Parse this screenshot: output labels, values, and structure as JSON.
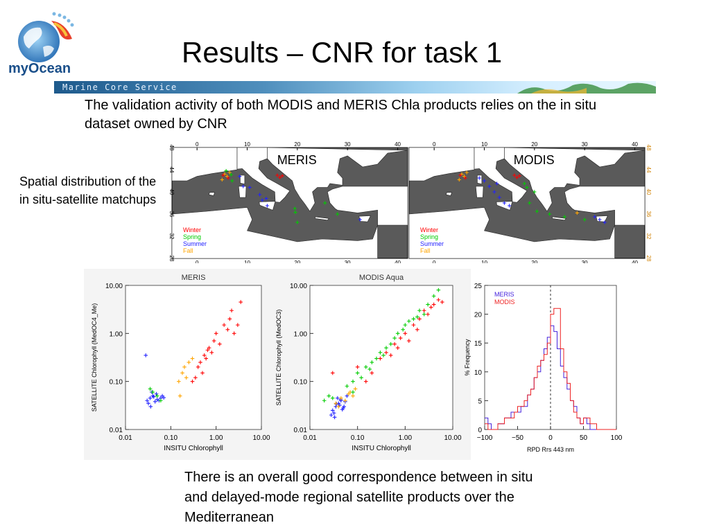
{
  "logo": {
    "text": "myOcean"
  },
  "banner": {
    "text": "Marine Core Service"
  },
  "title": "Results – CNR for task 1",
  "intro": "The validation activity of both MODIS and MERIS Chla products relies on the in situ dataset owned by CNR",
  "side_label": "Spatial distribution of the in situ-satellite matchups",
  "conclusion": "There is an overall good correspondence between in situ and delayed-mode regional satellite products over the Mediterranean",
  "colors": {
    "winter": "#ff0000",
    "spring": "#00cc00",
    "summer": "#2222ff",
    "fall": "#ffa500",
    "land": "#ffffff",
    "sea": "#5a5a5a"
  },
  "maps": [
    {
      "title": "MERIS",
      "legend": [
        "Winter",
        "Spring",
        "Summer",
        "Fall"
      ],
      "lon_ticks": [
        "0",
        "10",
        "20",
        "30",
        "40"
      ],
      "lat_ticks": [
        "48",
        "44",
        "40",
        "36",
        "32",
        "28"
      ],
      "points": [
        {
          "lon": 5.5,
          "lat": 43.2,
          "s": "fall"
        },
        {
          "lon": 6.0,
          "lat": 42.8,
          "s": "fall"
        },
        {
          "lon": 5.0,
          "lat": 42.2,
          "s": "fall"
        },
        {
          "lon": 6.5,
          "lat": 43.5,
          "s": "fall"
        },
        {
          "lon": 5.2,
          "lat": 43.0,
          "s": "winter"
        },
        {
          "lon": 6.2,
          "lat": 42.5,
          "s": "winter"
        },
        {
          "lon": 5.8,
          "lat": 43.8,
          "s": "spring"
        },
        {
          "lon": 7.0,
          "lat": 42.0,
          "s": "spring"
        },
        {
          "lon": 6.8,
          "lat": 43.1,
          "s": "spring"
        },
        {
          "lon": 8.5,
          "lat": 42.8,
          "s": "summer"
        },
        {
          "lon": 9.2,
          "lat": 41.0,
          "s": "summer"
        },
        {
          "lon": 10.5,
          "lat": 40.8,
          "s": "summer"
        },
        {
          "lon": 13.0,
          "lat": 38.5,
          "s": "summer"
        },
        {
          "lon": 14.0,
          "lat": 37.5,
          "s": "summer"
        },
        {
          "lon": 12.5,
          "lat": 39.5,
          "s": "summer"
        },
        {
          "lon": 13.8,
          "lat": 38.8,
          "s": "summer"
        },
        {
          "lon": 16.0,
          "lat": 43.0,
          "s": "winter"
        },
        {
          "lon": 16.5,
          "lat": 42.6,
          "s": "winter"
        },
        {
          "lon": 17.0,
          "lat": 42.9,
          "s": "winter"
        },
        {
          "lon": 19.5,
          "lat": 37.0,
          "s": "spring"
        },
        {
          "lon": 19.6,
          "lat": 36.3,
          "s": "spring"
        },
        {
          "lon": 20.0,
          "lat": 34.5,
          "s": "spring"
        },
        {
          "lon": 25.5,
          "lat": 38.0,
          "s": "spring"
        },
        {
          "lon": 28.0,
          "lat": 36.0,
          "s": "spring"
        },
        {
          "lon": 32.5,
          "lat": 35.0,
          "s": "summer"
        }
      ]
    },
    {
      "title": "MODIS",
      "legend": [
        "Winter",
        "Spring",
        "Summer",
        "Fall"
      ],
      "lon_ticks": [
        "0",
        "10",
        "20",
        "30",
        "40"
      ],
      "lat_ticks": [
        "48",
        "44",
        "40",
        "36",
        "32",
        "28"
      ],
      "points": [
        {
          "lon": 5.5,
          "lat": 43.2,
          "s": "fall"
        },
        {
          "lon": 6.0,
          "lat": 42.8,
          "s": "fall"
        },
        {
          "lon": 5.0,
          "lat": 42.2,
          "s": "fall"
        },
        {
          "lon": 6.5,
          "lat": 43.5,
          "s": "fall"
        },
        {
          "lon": 5.2,
          "lat": 43.0,
          "s": "winter"
        },
        {
          "lon": 6.2,
          "lat": 42.5,
          "s": "winter"
        },
        {
          "lon": 9.0,
          "lat": 42.5,
          "s": "summer"
        },
        {
          "lon": 10.0,
          "lat": 42.0,
          "s": "summer"
        },
        {
          "lon": 11.0,
          "lat": 41.0,
          "s": "summer"
        },
        {
          "lon": 12.0,
          "lat": 40.0,
          "s": "summer"
        },
        {
          "lon": 13.0,
          "lat": 39.0,
          "s": "summer"
        },
        {
          "lon": 14.0,
          "lat": 38.0,
          "s": "summer"
        },
        {
          "lon": 15.0,
          "lat": 37.5,
          "s": "summer"
        },
        {
          "lon": 12.5,
          "lat": 41.5,
          "s": "summer"
        },
        {
          "lon": 16.0,
          "lat": 43.0,
          "s": "winter"
        },
        {
          "lon": 16.5,
          "lat": 42.6,
          "s": "winter"
        },
        {
          "lon": 17.0,
          "lat": 42.9,
          "s": "winter"
        },
        {
          "lon": 18.0,
          "lat": 41.5,
          "s": "spring"
        },
        {
          "lon": 18.5,
          "lat": 40.8,
          "s": "spring"
        },
        {
          "lon": 20.0,
          "lat": 40.0,
          "s": "spring"
        },
        {
          "lon": 19.0,
          "lat": 38.0,
          "s": "spring"
        },
        {
          "lon": 20.5,
          "lat": 36.5,
          "s": "spring"
        },
        {
          "lon": 23.0,
          "lat": 36.0,
          "s": "spring"
        },
        {
          "lon": 26.0,
          "lat": 35.5,
          "s": "spring"
        },
        {
          "lon": 28.5,
          "lat": 36.2,
          "s": "fall"
        },
        {
          "lon": 30.0,
          "lat": 35.0,
          "s": "spring"
        },
        {
          "lon": 32.0,
          "lat": 35.5,
          "s": "summer"
        },
        {
          "lon": 33.0,
          "lat": 35.0,
          "s": "summer"
        },
        {
          "lon": 34.0,
          "lat": 34.5,
          "s": "summer"
        }
      ]
    }
  ],
  "chart_data": [
    {
      "type": "scatter",
      "title": "MERIS",
      "xlabel": "INSITU Chlorophyll",
      "ylabel": "SATELLITE Chlorophyll (MedOC4_Me)",
      "x_scale": "log",
      "y_scale": "log",
      "xlim": [
        0.01,
        10.0
      ],
      "ylim": [
        0.01,
        10.0
      ],
      "x_ticks": [
        "0.01",
        "0.10",
        "1.00",
        "10.00"
      ],
      "y_ticks": [
        "0.01",
        "0.10",
        "1.00",
        "10.00"
      ],
      "series": [
        {
          "season": "summer",
          "x": [
            0.028,
            0.03,
            0.035,
            0.04,
            0.045,
            0.05,
            0.032,
            0.038,
            0.042,
            0.055,
            0.06,
            0.065,
            0.07,
            0.036,
            0.048
          ],
          "y": [
            0.35,
            0.04,
            0.045,
            0.05,
            0.038,
            0.042,
            0.035,
            0.06,
            0.048,
            0.04,
            0.045,
            0.05,
            0.046,
            0.03,
            0.055
          ]
        },
        {
          "season": "spring",
          "x": [
            0.04,
            0.05,
            0.035,
            0.06
          ],
          "y": [
            0.06,
            0.05,
            0.07,
            0.04
          ]
        },
        {
          "season": "fall",
          "x": [
            0.15,
            0.18,
            0.2,
            0.22,
            0.25,
            0.3,
            0.16
          ],
          "y": [
            0.1,
            0.15,
            0.2,
            0.12,
            0.25,
            0.3,
            0.05
          ]
        },
        {
          "season": "winter",
          "x": [
            0.3,
            0.4,
            0.5,
            0.6,
            0.7,
            0.8,
            0.9,
            1.0,
            1.2,
            1.5,
            2.0,
            2.5,
            3.0,
            3.5,
            0.35,
            0.45,
            0.55,
            1.8,
            2.2,
            0.65
          ],
          "y": [
            0.1,
            0.2,
            0.15,
            0.3,
            0.5,
            0.4,
            0.7,
            1.0,
            0.6,
            1.5,
            2.0,
            1.0,
            1.5,
            4.5,
            0.12,
            0.25,
            0.35,
            1.2,
            3.0,
            0.45
          ]
        }
      ]
    },
    {
      "type": "scatter",
      "title": "MODIS Aqua",
      "xlabel": "INSITU Chlorophyll",
      "ylabel": "SATELLITE Chlorophyll (MedOC3)",
      "x_scale": "log",
      "y_scale": "log",
      "xlim": [
        0.01,
        10.0
      ],
      "ylim": [
        0.01,
        10.0
      ],
      "x_ticks": [
        "0.01",
        "0.10",
        "1.00",
        "10.00"
      ],
      "y_ticks": [
        "0.01",
        "0.10",
        "1.00",
        "10.00"
      ],
      "series": [
        {
          "season": "summer",
          "x": [
            0.028,
            0.03,
            0.035,
            0.04,
            0.045,
            0.05,
            0.032,
            0.038,
            0.042,
            0.055,
            0.06,
            0.033,
            0.048,
            0.036,
            0.044,
            0.052
          ],
          "y": [
            0.02,
            0.025,
            0.03,
            0.035,
            0.04,
            0.028,
            0.022,
            0.045,
            0.032,
            0.038,
            0.05,
            0.018,
            0.026,
            0.034,
            0.042,
            0.03
          ]
        },
        {
          "season": "fall",
          "x": [
            0.035,
            0.045,
            0.055,
            0.065,
            0.07,
            0.08,
            0.09,
            0.04
          ],
          "y": [
            0.035,
            0.045,
            0.04,
            0.055,
            0.06,
            0.05,
            0.07,
            0.03
          ]
        },
        {
          "season": "spring",
          "x": [
            0.02,
            0.025,
            0.03,
            0.06,
            0.08,
            0.1,
            0.12,
            0.15,
            0.2,
            0.25,
            0.3,
            0.5,
            0.7,
            1.0,
            1.5,
            2.0,
            3.0,
            4.0,
            5.0,
            0.4,
            0.6,
            0.9,
            1.2,
            0.18,
            0.08,
            0.35,
            2.5,
            1.8
          ],
          "y": [
            0.04,
            0.05,
            0.045,
            0.08,
            0.1,
            0.15,
            0.12,
            0.2,
            0.25,
            0.3,
            0.4,
            0.6,
            1.0,
            1.5,
            2.0,
            3.0,
            4.0,
            6.0,
            8.0,
            0.5,
            0.8,
            1.2,
            1.8,
            0.18,
            0.06,
            0.35,
            2.5,
            2.2
          ]
        },
        {
          "season": "winter",
          "x": [
            0.03,
            0.1,
            0.15,
            0.2,
            0.3,
            0.4,
            0.5,
            0.6,
            0.8,
            1.0,
            1.2,
            1.5,
            2.0,
            2.5,
            3.0,
            4.0,
            5.0,
            6.0,
            0.7,
            1.8,
            3.5
          ],
          "y": [
            0.15,
            0.2,
            0.1,
            0.15,
            0.3,
            0.4,
            0.35,
            0.6,
            0.8,
            1.0,
            0.7,
            1.5,
            2.0,
            3.0,
            2.5,
            4.0,
            5.0,
            4.5,
            0.5,
            1.2,
            3.5
          ]
        }
      ]
    },
    {
      "type": "line",
      "title": "",
      "xlabel": "RPD Rrs 443 nm",
      "ylabel": "% Frequency",
      "xlim": [
        -100,
        100
      ],
      "ylim": [
        0,
        25
      ],
      "x_ticks": [
        "-100",
        "-50",
        "0",
        "50",
        "100"
      ],
      "y_ticks": [
        "0",
        "5",
        "10",
        "15",
        "20",
        "25"
      ],
      "bin_edges": [
        -100,
        -95,
        -90,
        -85,
        -80,
        -75,
        -70,
        -65,
        -60,
        -55,
        -50,
        -45,
        -40,
        -35,
        -30,
        -25,
        -20,
        -15,
        -10,
        -5,
        0,
        5,
        10,
        15,
        20,
        25,
        30,
        35,
        40,
        45,
        50,
        55,
        60,
        65,
        70,
        75,
        80,
        85,
        90,
        95,
        100
      ],
      "series": [
        {
          "name": "MERIS",
          "color": "#4422dd",
          "values": [
            2,
            1,
            0,
            0,
            1,
            1,
            2,
            2,
            3,
            3,
            3,
            4,
            4,
            6,
            7,
            9,
            10,
            12,
            14,
            16,
            18,
            17,
            14,
            11,
            9,
            7,
            5,
            4,
            2,
            1,
            2,
            1,
            0,
            0,
            0,
            0,
            0,
            0,
            0,
            0
          ]
        },
        {
          "name": "MODIS",
          "color": "#ee2222",
          "values": [
            1,
            0,
            0,
            0,
            1,
            1,
            2,
            2,
            2,
            3,
            4,
            4,
            5,
            6,
            7,
            9,
            11,
            12,
            13,
            15,
            20,
            21,
            21,
            14,
            10,
            8,
            5,
            3,
            2,
            1,
            2,
            2,
            1,
            1,
            0,
            0,
            0,
            0,
            0,
            0
          ]
        }
      ],
      "reference_line": 0
    }
  ]
}
